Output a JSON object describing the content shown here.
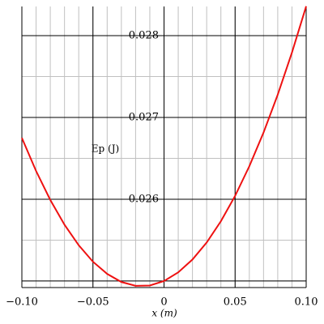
{
  "chart_data": {
    "type": "line",
    "x_label": "x (m)",
    "y_label": "Ep (J)",
    "x": [
      -0.1,
      -0.09,
      -0.08,
      -0.07,
      -0.06,
      -0.05,
      -0.04,
      -0.03,
      -0.02,
      -0.01,
      0,
      0.01,
      0.02,
      0.03,
      0.04,
      0.05,
      0.06,
      0.07,
      0.08,
      0.09,
      0.1
    ],
    "series": [
      {
        "color": "#ee1111",
        "values": [
          0.02675,
          0.026345,
          0.025991,
          0.025688,
          0.025437,
          0.025236,
          0.025087,
          0.024988,
          0.024941,
          0.024945,
          0.025,
          0.025106,
          0.025263,
          0.025471,
          0.025731,
          0.026041,
          0.026403,
          0.026815,
          0.027279,
          0.027794,
          0.02836
        ]
      }
    ],
    "xlim": [
      -0.1,
      0.1
    ],
    "ylim": [
      0.02492,
      0.028357
    ],
    "xticks": [
      {
        "value": -0.1,
        "label": "−0.10"
      },
      {
        "value": -0.05,
        "label": "−0.05"
      },
      0,
      0.05,
      {
        "value": 0.1,
        "label": "0.10"
      }
    ],
    "yticks": [
      0.026,
      0.027,
      0.028
    ],
    "y_unlabeled_lines": [
      0.025
    ],
    "x_minor_step": 0.01,
    "y_minor_step": 0.0005,
    "grid": true
  }
}
